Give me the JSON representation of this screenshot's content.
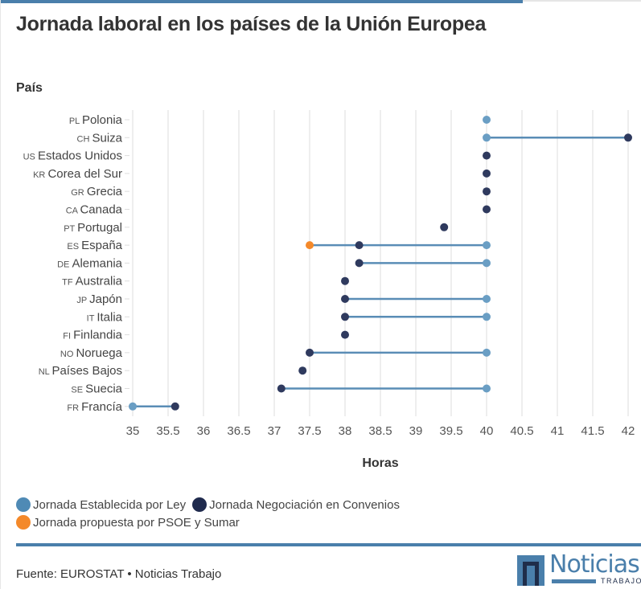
{
  "header": {
    "title": "Jornada laboral en los países de la Unión Europea"
  },
  "chart_data": {
    "type": "dumbbell",
    "title": "Jornada laboral en los países de la Unión Europea",
    "xlabel": "Horas",
    "ylabel": "País",
    "xlim": [
      35,
      42
    ],
    "xticks": [
      "35",
      "35.5",
      "36",
      "36.5",
      "37",
      "37.5",
      "38",
      "38.5",
      "39",
      "39.5",
      "40",
      "40.5",
      "41",
      "41.5",
      "42"
    ],
    "grid": true,
    "legend_position": "bottom-left",
    "series": [
      {
        "name": "Jornada Establecida por Ley",
        "color": "#6a9ec4"
      },
      {
        "name": "Jornada Negociación en Convenios",
        "color": "#2a3556"
      },
      {
        "name": "Jornada propuesta por PSOE y Sumar",
        "color": "#f4892a"
      }
    ],
    "rows": [
      {
        "code": "PL",
        "country": "Polonia",
        "ley": 40,
        "convenio": null,
        "propuesta": null
      },
      {
        "code": "CH",
        "country": "Suiza",
        "ley": 40,
        "convenio": 42,
        "propuesta": null
      },
      {
        "code": "US",
        "country": "Estados Unidos",
        "ley": null,
        "convenio": 40,
        "propuesta": null
      },
      {
        "code": "KR",
        "country": "Corea del Sur",
        "ley": null,
        "convenio": 40,
        "propuesta": null
      },
      {
        "code": "GR",
        "country": "Grecia",
        "ley": null,
        "convenio": 40,
        "propuesta": null
      },
      {
        "code": "CA",
        "country": "Canada",
        "ley": null,
        "convenio": 40,
        "propuesta": null
      },
      {
        "code": "PT",
        "country": "Portugal",
        "ley": null,
        "convenio": 39.4,
        "propuesta": null
      },
      {
        "code": "ES",
        "country": "España",
        "ley": 40,
        "convenio": 38.2,
        "propuesta": 37.5
      },
      {
        "code": "DE",
        "country": "Alemania",
        "ley": 40,
        "convenio": 38.2,
        "propuesta": null
      },
      {
        "code": "TF",
        "country": "Australia",
        "ley": null,
        "convenio": 38,
        "propuesta": null
      },
      {
        "code": "JP",
        "country": "Japón",
        "ley": 40,
        "convenio": 38,
        "propuesta": null
      },
      {
        "code": "IT",
        "country": "Italia",
        "ley": 40,
        "convenio": 38,
        "propuesta": null
      },
      {
        "code": "FI",
        "country": "Finlandia",
        "ley": null,
        "convenio": 38,
        "propuesta": null
      },
      {
        "code": "NO",
        "country": "Noruega",
        "ley": 40,
        "convenio": 37.5,
        "propuesta": null
      },
      {
        "code": "NL",
        "country": "Países Bajos",
        "ley": null,
        "convenio": 37.4,
        "propuesta": null
      },
      {
        "code": "SE",
        "country": "Suecia",
        "ley": 40,
        "convenio": 37.1,
        "propuesta": null
      },
      {
        "code": "FR",
        "country": "Francía",
        "ley": 35,
        "convenio": 35.6,
        "propuesta": null
      }
    ]
  },
  "legend": {
    "items": [
      {
        "label": "Jornada Establecida por Ley",
        "color": "#4f8ab5"
      },
      {
        "label": "Jornada Negociación en Convenios",
        "color": "#1f2a4d"
      },
      {
        "label": "Jornada propuesta por PSOE y Sumar",
        "color": "#f4892a"
      }
    ]
  },
  "footer": {
    "source": "Fuente: EUROSTAT • Noticias Trabajo",
    "logo_word": "Noticias",
    "logo_sub": "TRABAJO"
  }
}
